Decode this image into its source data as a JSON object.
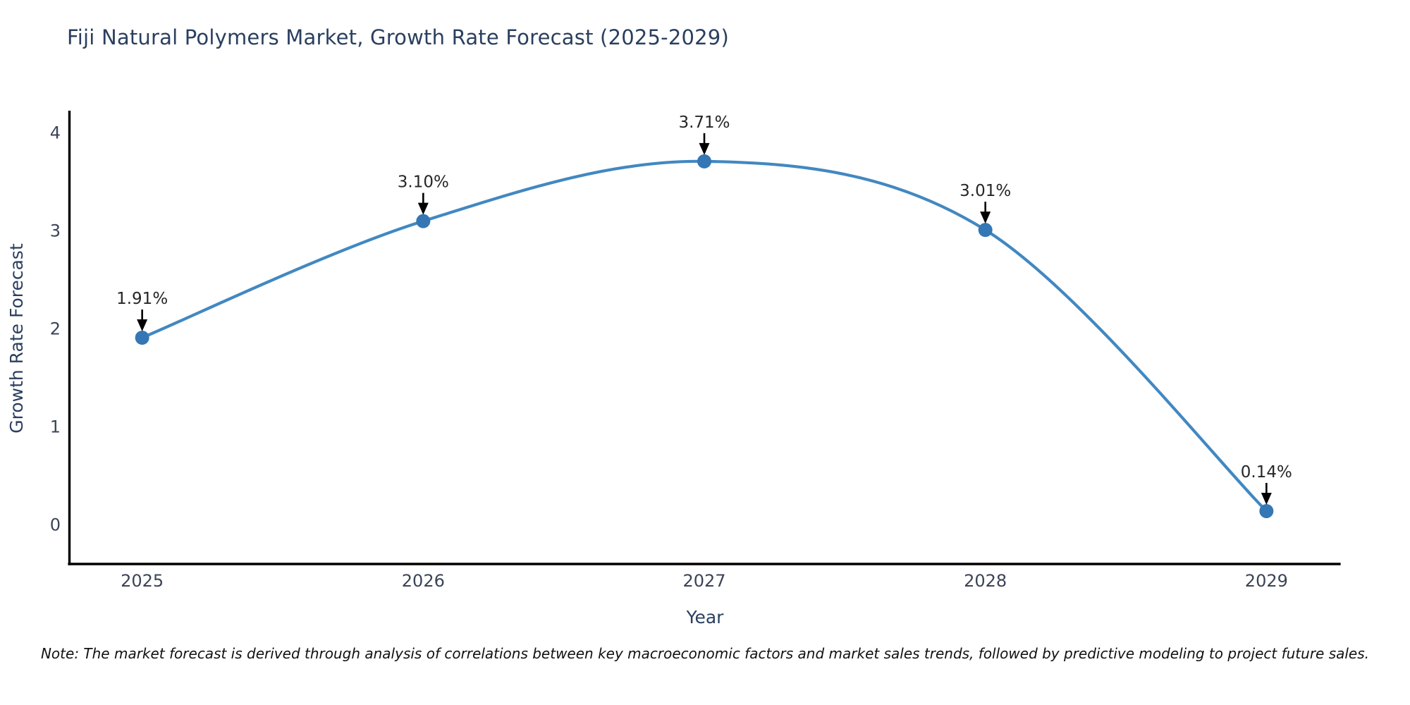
{
  "title": "Fiji Natural Polymers Market, Growth Rate Forecast (2025-2029)",
  "note": "Note: The market forecast is derived through analysis of correlations between key macroeconomic factors and market sales trends, followed by predictive modeling to project future sales.",
  "chart_data": {
    "type": "line",
    "title": "Fiji Natural Polymers Market, Growth Rate Forecast (2025-2029)",
    "xlabel": "Year",
    "ylabel": "Growth Rate Forecast",
    "categories": [
      2025,
      2026,
      2027,
      2028,
      2029
    ],
    "values": [
      1.91,
      3.1,
      3.71,
      3.01,
      0.14
    ],
    "point_labels": [
      "1.91%",
      "3.10%",
      "3.71%",
      "3.01%",
      "0.14%"
    ],
    "yticks": [
      0,
      1,
      2,
      3,
      4
    ],
    "ylim": [
      -0.4,
      4.22
    ],
    "xlim": [
      2024.74,
      2029.26
    ],
    "grid": false,
    "smooth_line": true,
    "legend": "none",
    "annotations_style": "value label above point with downward black arrow",
    "colors": {
      "line": "#4288c1",
      "marker": "#3477b4",
      "arrow": "#000000",
      "spine": "#000000",
      "title_text": "#2a3f5f",
      "axis_label_text": "#2a3f5f",
      "tick_text": "#3b4457",
      "annotation_text": "#262626",
      "background": "#ffffff"
    }
  }
}
